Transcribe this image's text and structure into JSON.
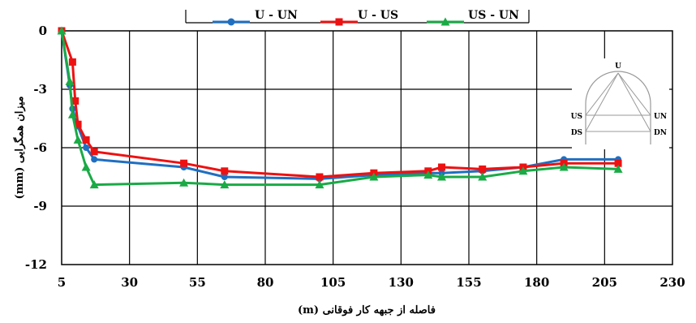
{
  "chart_data": {
    "type": "line",
    "xlabel": "فاصله از جبهه کار فوقانی (m)",
    "ylabel": "میزان همگرایی (mm)",
    "x_ticks": [
      5,
      30,
      55,
      80,
      105,
      130,
      155,
      180,
      205,
      230
    ],
    "y_ticks": [
      0,
      -3,
      -6,
      -9,
      -12
    ],
    "xlim": [
      5,
      230
    ],
    "ylim": [
      -12,
      0
    ],
    "grid": "horizontal and vertical",
    "legend_placement": "top",
    "series": [
      {
        "name": "U - UN",
        "color": "#1f6fc1",
        "marker": "circle",
        "x": [
          5,
          8,
          9,
          11,
          14,
          17,
          50,
          65,
          100,
          120,
          140,
          145,
          160,
          175,
          190,
          210
        ],
        "y": [
          0,
          -2.8,
          -4.0,
          -4.9,
          -6.0,
          -6.6,
          -7.0,
          -7.5,
          -7.6,
          -7.4,
          -7.3,
          -7.3,
          -7.2,
          -7.0,
          -6.6,
          -6.6
        ]
      },
      {
        "name": "U - US",
        "color": "#ee1111",
        "marker": "square",
        "x": [
          5,
          9,
          10,
          11,
          14,
          17,
          50,
          65,
          100,
          120,
          140,
          145,
          160,
          175,
          190,
          210
        ],
        "y": [
          0,
          -1.6,
          -3.6,
          -4.8,
          -5.6,
          -6.2,
          -6.8,
          -7.2,
          -7.5,
          -7.3,
          -7.2,
          -7.0,
          -7.1,
          -7.0,
          -6.8,
          -6.8
        ]
      },
      {
        "name": "US - UN",
        "color": "#1aaa46",
        "marker": "triangle",
        "x": [
          5,
          8,
          9,
          11,
          14,
          17,
          50,
          65,
          100,
          120,
          140,
          145,
          160,
          175,
          190,
          210
        ],
        "y": [
          0,
          -2.6,
          -4.3,
          -5.6,
          -7.0,
          -7.9,
          -7.8,
          -7.9,
          -7.9,
          -7.5,
          -7.4,
          -7.5,
          -7.5,
          -7.2,
          -7.0,
          -7.1
        ]
      }
    ],
    "inset_labels": {
      "top": "U",
      "upper_left": "US",
      "upper_right": "UN",
      "lower_left": "DS",
      "lower_right": "DN"
    }
  }
}
